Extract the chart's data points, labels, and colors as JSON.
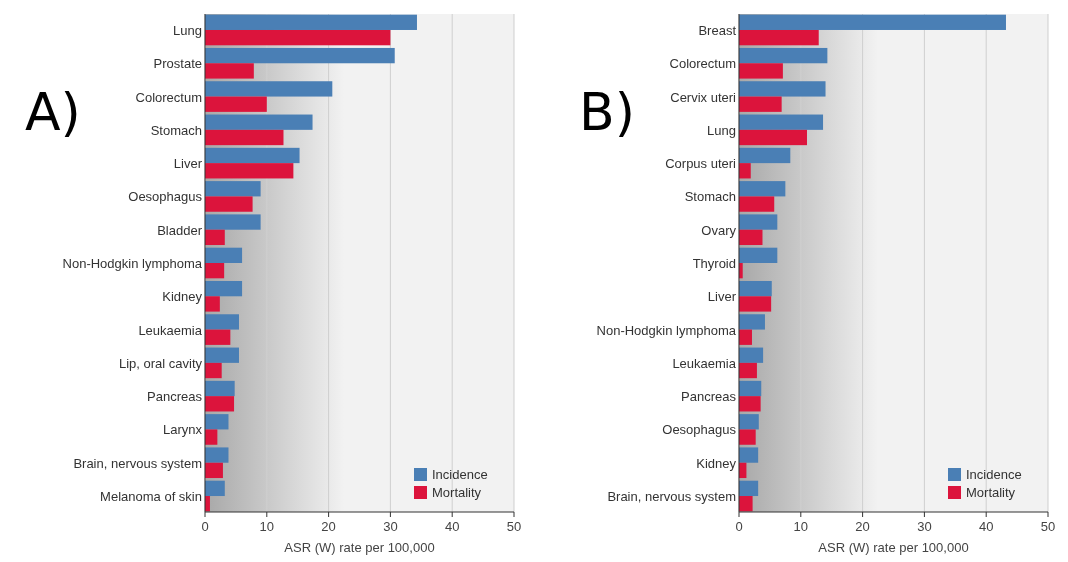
{
  "chart_data": [
    {
      "type": "bar",
      "title": "A)",
      "orientation": "horizontal",
      "categories": [
        "Lung",
        "Prostate",
        "Colorectum",
        "Stomach",
        "Liver",
        "Oesophagus",
        "Bladder",
        "Non-Hodgkin lymphoma",
        "Kidney",
        "Leukaemia",
        "Lip, oral cavity",
        "Pancreas",
        "Larynx",
        "Brain, nervous system",
        "Melanoma of skin"
      ],
      "series": [
        {
          "name": "Incidence",
          "color": "#4a7fb5",
          "values": [
            34.3,
            30.7,
            20.6,
            17.4,
            15.3,
            9.0,
            9.0,
            6.0,
            6.0,
            5.5,
            5.5,
            4.8,
            3.8,
            3.8,
            3.2
          ]
        },
        {
          "name": "Mortality",
          "color": "#dc143c",
          "values": [
            30.0,
            7.9,
            10.0,
            12.7,
            14.3,
            7.7,
            3.2,
            3.1,
            2.4,
            4.1,
            2.7,
            4.7,
            2.0,
            2.9,
            0.8
          ]
        }
      ],
      "xlabel": "ASR (W) rate per 100,000",
      "xlim": [
        0,
        50
      ],
      "xticks": [
        0,
        10,
        20,
        30,
        40,
        50
      ],
      "grid": "x",
      "legend": "bottom right"
    },
    {
      "type": "bar",
      "title": "B)",
      "orientation": "horizontal",
      "categories": [
        "Breast",
        "Colorectum",
        "Cervix uteri",
        "Lung",
        "Corpus uteri",
        "Stomach",
        "Ovary",
        "Thyroid",
        "Liver",
        "Non-Hodgkin lymphoma",
        "Leukaemia",
        "Pancreas",
        "Oesophagus",
        "Kidney",
        "Brain, nervous system"
      ],
      "series": [
        {
          "name": "Incidence",
          "color": "#4a7fb5",
          "values": [
            43.2,
            14.3,
            14.0,
            13.6,
            8.3,
            7.5,
            6.2,
            6.2,
            5.3,
            4.2,
            3.9,
            3.6,
            3.2,
            3.1,
            3.1
          ]
        },
        {
          "name": "Mortality",
          "color": "#dc143c",
          "values": [
            12.9,
            7.1,
            6.9,
            11.0,
            1.9,
            5.7,
            3.8,
            0.6,
            5.2,
            2.1,
            2.9,
            3.5,
            2.7,
            1.2,
            2.2
          ]
        }
      ],
      "xlabel": "ASR (W) rate per 100,000",
      "xlim": [
        0,
        50
      ],
      "xticks": [
        0,
        10,
        20,
        30,
        40,
        50
      ],
      "grid": "x",
      "legend": "bottom right"
    }
  ]
}
